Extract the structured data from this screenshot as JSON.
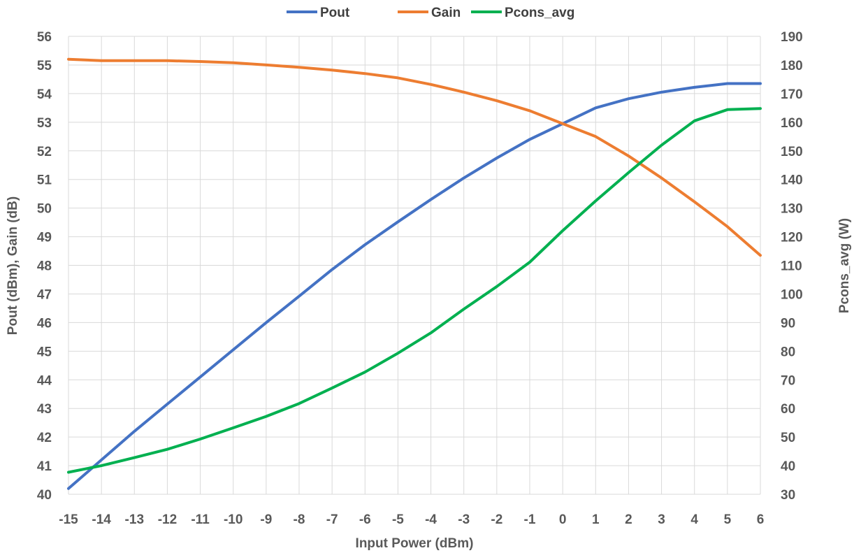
{
  "chart_data": {
    "type": "line",
    "title": "",
    "xlabel": "Input Power  (dBm)",
    "ylabel": "Pout  (dBm),  Gain  (dB)",
    "y2label": "Pcons_avg  (W)",
    "x": [
      -15,
      -14,
      -13,
      -12,
      -11,
      -10,
      -9,
      -8,
      -7,
      -6,
      -5,
      -4,
      -3,
      -2,
      -1,
      0,
      1,
      2,
      3,
      4,
      5,
      6
    ],
    "x_ticks": [
      "-15",
      "-14",
      "-13",
      "-12",
      "-11",
      "-10",
      "-9",
      "-8",
      "-7",
      "-6",
      "-5",
      "-4",
      "-3",
      "-2",
      "-1",
      "0",
      "1",
      "2",
      "3",
      "4",
      "5",
      "6"
    ],
    "ylim": [
      40,
      56
    ],
    "y_ticks": [
      "40",
      "41",
      "42",
      "43",
      "44",
      "45",
      "46",
      "47",
      "48",
      "49",
      "50",
      "51",
      "52",
      "53",
      "54",
      "55",
      "56"
    ],
    "y2lim": [
      30,
      190
    ],
    "y2_ticks": [
      "30",
      "40",
      "50",
      "60",
      "70",
      "80",
      "90",
      "100",
      "110",
      "120",
      "130",
      "140",
      "150",
      "160",
      "170",
      "180",
      "190"
    ],
    "grid": true,
    "legend_position": "top-center",
    "series": [
      {
        "name": "Pout",
        "axis": "left",
        "color": "#4472C4",
        "values": [
          40.2,
          41.2,
          42.2,
          43.15,
          44.1,
          45.05,
          46.0,
          46.92,
          47.85,
          48.72,
          49.52,
          50.3,
          51.05,
          51.75,
          52.4,
          52.95,
          53.5,
          53.82,
          54.05,
          54.22,
          54.35,
          54.35
        ]
      },
      {
        "name": "Gain",
        "axis": "left",
        "color": "#ED7D31",
        "values": [
          55.2,
          55.15,
          55.15,
          55.15,
          55.12,
          55.08,
          55.0,
          54.92,
          54.82,
          54.7,
          54.55,
          54.32,
          54.05,
          53.75,
          53.4,
          52.95,
          52.5,
          51.82,
          51.05,
          50.22,
          49.35,
          48.35
        ]
      },
      {
        "name": "Pcons_avg",
        "axis": "right",
        "color": "#00B050",
        "values": [
          37.7,
          40.0,
          42.8,
          45.7,
          49.3,
          53.2,
          57.2,
          61.7,
          67.1,
          72.7,
          79.3,
          86.4,
          94.7,
          102.6,
          111.1,
          122.1,
          132.5,
          142.4,
          152.0,
          160.5,
          164.4,
          164.8
        ]
      }
    ]
  }
}
